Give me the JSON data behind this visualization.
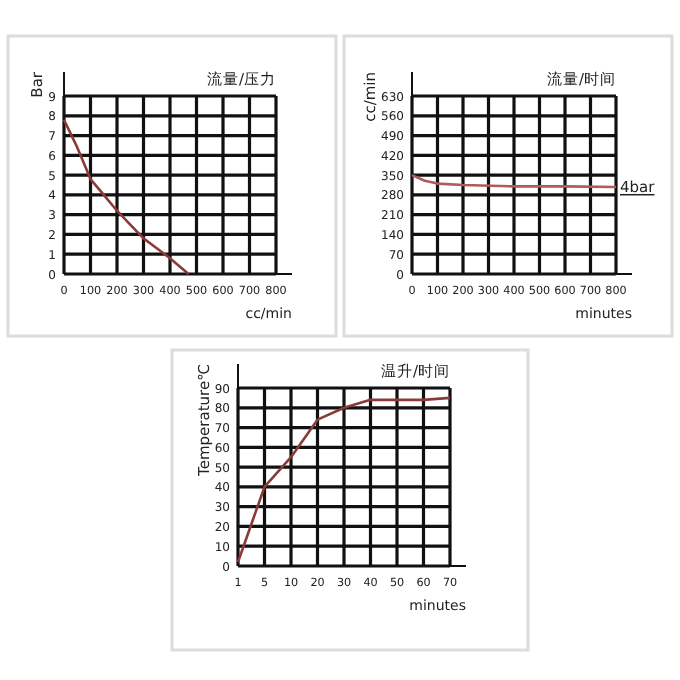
{
  "chart_data": [
    {
      "type": "line",
      "title": "流量/压力",
      "xlabel": "cc/min",
      "ylabel": "Bar",
      "x": [
        0,
        50,
        100,
        150,
        200,
        250,
        300,
        350,
        400,
        470
      ],
      "values": [
        7.8,
        6.4,
        4.8,
        4,
        3.2,
        2.5,
        1.8,
        1.3,
        0.8,
        0
      ],
      "color": "#8b3a3a",
      "xlim": [
        0,
        800
      ],
      "xticks": [
        0,
        100,
        200,
        300,
        400,
        500,
        600,
        700,
        800
      ],
      "ylim": [
        0,
        9
      ],
      "yticks": [
        0,
        1,
        2,
        3,
        4,
        5,
        6,
        7,
        8,
        9
      ],
      "grid": true
    },
    {
      "type": "line",
      "title": "流量/时间",
      "xlabel": "minutes",
      "ylabel": "cc/min",
      "x": [
        0,
        50,
        100,
        200,
        400,
        600,
        800
      ],
      "values": [
        350,
        330,
        320,
        315,
        310,
        310,
        308
      ],
      "color": "#b05a5a",
      "xlim": [
        0,
        800
      ],
      "xticks": [
        0,
        100,
        200,
        300,
        400,
        500,
        600,
        700,
        800
      ],
      "ylim": [
        0,
        630
      ],
      "yticks": [
        0,
        70,
        140,
        210,
        280,
        350,
        420,
        490,
        560,
        630
      ],
      "grid": true,
      "annotations": [
        {
          "text": "4bar",
          "x": 800,
          "y": 308
        }
      ]
    },
    {
      "type": "line",
      "title": "温升/时间",
      "xlabel": "minutes",
      "ylabel": "Temperature℃",
      "categories": [
        "1",
        "5",
        "10",
        "20",
        "30",
        "40",
        "50",
        "60",
        "70"
      ],
      "values": [
        2,
        40,
        55,
        74,
        80,
        84,
        84,
        84,
        85
      ],
      "color": "#8b3a3a",
      "ylim": [
        0,
        90
      ],
      "yticks": [
        0,
        10,
        20,
        30,
        40,
        50,
        60,
        70,
        80,
        90
      ],
      "grid": true
    }
  ]
}
